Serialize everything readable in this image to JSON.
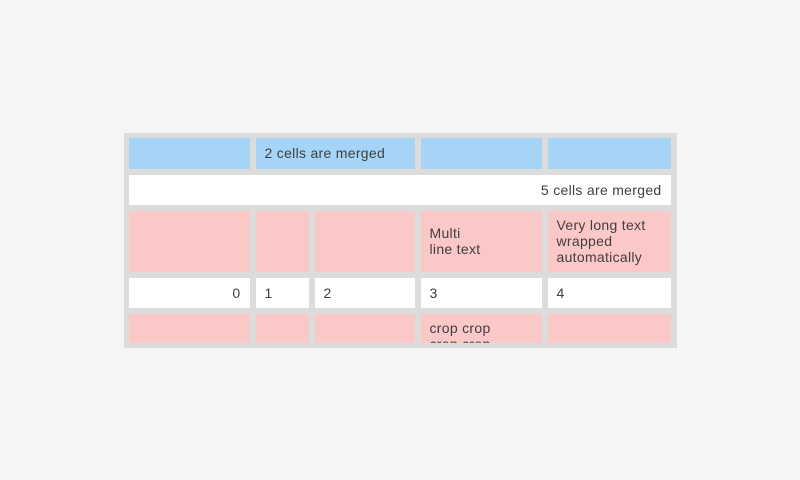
{
  "colors": {
    "page_bg": "#f5f5f5",
    "table_bg": "#dcdcdc",
    "header_cell": "#a5d4f6",
    "accent_row": "#fac8c6",
    "plain_cell": "#ffffff",
    "text": "#404040"
  },
  "table": {
    "rows": [
      {
        "cells": [
          {
            "text": ""
          },
          {
            "text": "2 cells are merged",
            "merged": "2 columns"
          },
          {
            "text": ""
          },
          {
            "text": ""
          }
        ]
      },
      {
        "cells": [
          {
            "text": "5 cells are merged",
            "merged": "5 columns",
            "align": "right"
          }
        ]
      },
      {
        "cells": [
          {
            "text": ""
          },
          {
            "text": ""
          },
          {
            "text": ""
          },
          {
            "text": "Multi\nline text"
          },
          {
            "text": "Very long text\nwrapped\nautomatically"
          }
        ]
      },
      {
        "cells": [
          {
            "text": "0",
            "align": "right"
          },
          {
            "text": "1"
          },
          {
            "text": "2"
          },
          {
            "text": "3"
          },
          {
            "text": "4"
          }
        ]
      },
      {
        "cells": [
          {
            "text": ""
          },
          {
            "text": ""
          },
          {
            "text": ""
          },
          {
            "text": "crop crop\ncrop crop",
            "note": "clipped by table bottom edge"
          },
          {
            "text": ""
          }
        ]
      }
    ]
  }
}
